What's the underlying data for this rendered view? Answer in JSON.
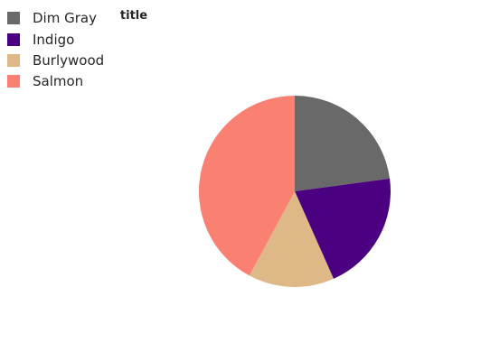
{
  "chart_data": {
    "type": "pie",
    "title": "title",
    "legend_position": "top-left",
    "slices": [
      {
        "label": "Dim Gray",
        "value": 22.9,
        "color": "#696969"
      },
      {
        "label": "Indigo",
        "value": 20.5,
        "color": "#4b0082"
      },
      {
        "label": "Burlywood",
        "value": 14.5,
        "color": "#deb887"
      },
      {
        "label": "Salmon",
        "value": 42.2,
        "color": "#fa8072"
      }
    ]
  }
}
